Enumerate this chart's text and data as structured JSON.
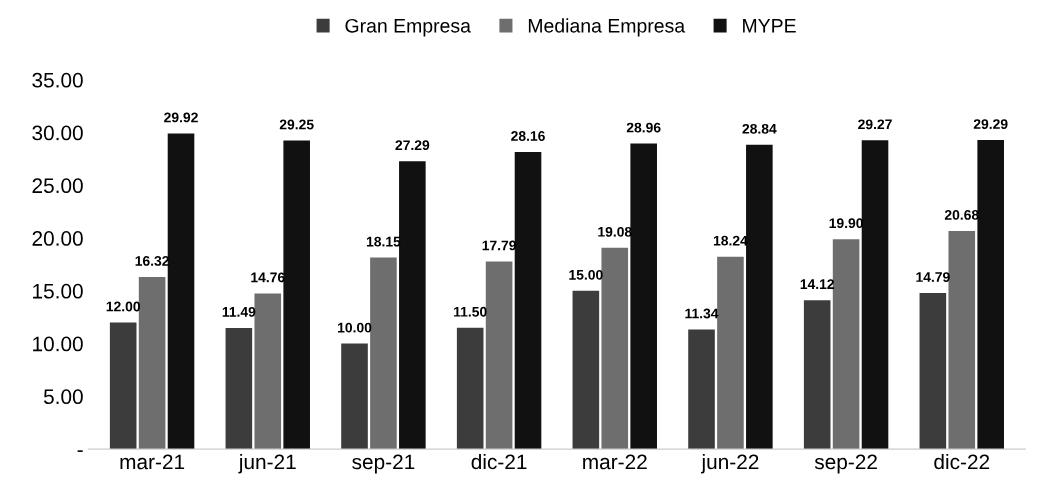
{
  "chart_data": {
    "type": "bar",
    "categories": [
      "mar-21",
      "jun-21",
      "sep-21",
      "dic-21",
      "mar-22",
      "jun-22",
      "sep-22",
      "dic-22"
    ],
    "series": [
      {
        "name": "Gran Empresa",
        "color": "#3c3c3c",
        "values": [
          12.0,
          11.49,
          10.0,
          11.5,
          15.0,
          11.34,
          14.12,
          14.79
        ],
        "value_labels": [
          "12.00",
          "11.49",
          "10.00",
          "11.50",
          "15.00",
          "11.34",
          "14.12",
          "14.79"
        ]
      },
      {
        "name": "Mediana Empresa",
        "color": "#6e6e6e",
        "values": [
          16.32,
          14.76,
          18.15,
          17.79,
          19.08,
          18.24,
          19.9,
          20.68
        ],
        "value_labels": [
          "16.32",
          "14.76",
          "18.15",
          "17.79",
          "19.08",
          "18.24",
          "19.90",
          "20.68"
        ]
      },
      {
        "name": "MYPE",
        "color": "#111111",
        "values": [
          29.92,
          29.25,
          27.29,
          28.16,
          28.96,
          28.84,
          29.27,
          29.29
        ],
        "value_labels": [
          "29.92",
          "29.25",
          "27.29",
          "28.16",
          "28.96",
          "28.84",
          "29.27",
          "29.29"
        ]
      }
    ],
    "ylim": [
      0,
      35
    ],
    "yticks": [
      {
        "value": 0,
        "label": "-"
      },
      {
        "value": 5,
        "label": "5.00"
      },
      {
        "value": 10,
        "label": "10.00"
      },
      {
        "value": 15,
        "label": "15.00"
      },
      {
        "value": 20,
        "label": "20.00"
      },
      {
        "value": 25,
        "label": "25.00"
      },
      {
        "value": 30,
        "label": "30.00"
      },
      {
        "value": 35,
        "label": "35.00"
      }
    ],
    "grid": false,
    "legend": "top"
  }
}
